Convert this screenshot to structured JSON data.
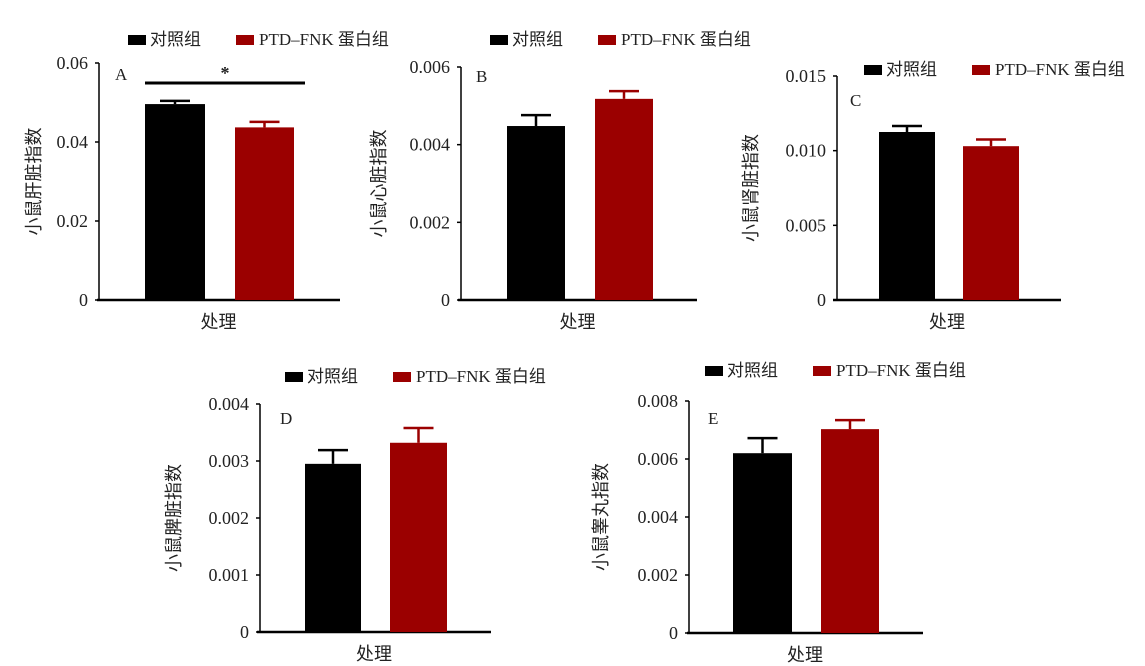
{
  "colors": {
    "control": "#000000",
    "treatment": "#9b0000"
  },
  "legend": [
    "对照组",
    "PTD–FNK 蛋白组"
  ],
  "chart_data": [
    {
      "type": "bar",
      "panel": "A",
      "ylabel": "小鼠肝脏指数",
      "xlabel": "处理",
      "ylim": [
        0,
        0.06
      ],
      "yticks": [
        "0",
        "0.02",
        "0.04",
        "0.06"
      ],
      "ytick_values": [
        0,
        0.02,
        0.04,
        0.06
      ],
      "series": [
        {
          "name": "对照组",
          "values": [
            0.0496
          ],
          "error": [
            0.0008
          ]
        },
        {
          "name": "PTD–FNK 蛋白组",
          "values": [
            0.0437
          ],
          "error": [
            0.0014
          ]
        }
      ],
      "annotation": "*",
      "legend": "top"
    },
    {
      "type": "bar",
      "panel": "B",
      "ylabel": "小鼠心脏指数",
      "xlabel": "处理",
      "ylim": [
        0,
        0.006
      ],
      "yticks": [
        "0",
        "0.002",
        "0.004",
        "0.006"
      ],
      "ytick_values": [
        0,
        0.002,
        0.004,
        0.006
      ],
      "series": [
        {
          "name": "对照组",
          "values": [
            0.00448
          ],
          "error": [
            0.00028
          ]
        },
        {
          "name": "PTD–FNK 蛋白组",
          "values": [
            0.00518
          ],
          "error": [
            0.0002
          ]
        }
      ],
      "legend": "top"
    },
    {
      "type": "bar",
      "panel": "C",
      "ylabel": "小鼠肾脏指数",
      "xlabel": "处理",
      "ylim": [
        0,
        0.015
      ],
      "yticks": [
        "0",
        "0.005",
        "0.010",
        "0.015"
      ],
      "ytick_values": [
        0,
        0.005,
        0.01,
        0.015
      ],
      "series": [
        {
          "name": "对照组",
          "values": [
            0.01125
          ],
          "error": [
            0.0004
          ]
        },
        {
          "name": "PTD–FNK 蛋白组",
          "values": [
            0.0103
          ],
          "error": [
            0.00045
          ]
        }
      ],
      "legend": "top"
    },
    {
      "type": "bar",
      "panel": "D",
      "ylabel": "小鼠脾脏指数",
      "xlabel": "处理",
      "ylim": [
        0,
        0.004
      ],
      "yticks": [
        "0",
        "0.001",
        "0.002",
        "0.003",
        "0.004"
      ],
      "ytick_values": [
        0,
        0.001,
        0.002,
        0.003,
        0.004
      ],
      "series": [
        {
          "name": "对照组",
          "values": [
            0.00295
          ],
          "error": [
            0.00024
          ]
        },
        {
          "name": "PTD–FNK 蛋白组",
          "values": [
            0.00332
          ],
          "error": [
            0.00026
          ]
        }
      ],
      "legend": "top"
    },
    {
      "type": "bar",
      "panel": "E",
      "ylabel": "小鼠睾丸指数",
      "xlabel": "处理",
      "ylim": [
        0,
        0.008
      ],
      "yticks": [
        "0",
        "0.002",
        "0.004",
        "0.006",
        "0.008"
      ],
      "ytick_values": [
        0,
        0.002,
        0.004,
        0.006,
        0.008
      ],
      "series": [
        {
          "name": "对照组",
          "values": [
            0.0062
          ],
          "error": [
            0.00052
          ]
        },
        {
          "name": "PTD–FNK 蛋白组",
          "values": [
            0.00703
          ],
          "error": [
            0.00031
          ]
        }
      ],
      "legend": "top"
    }
  ]
}
